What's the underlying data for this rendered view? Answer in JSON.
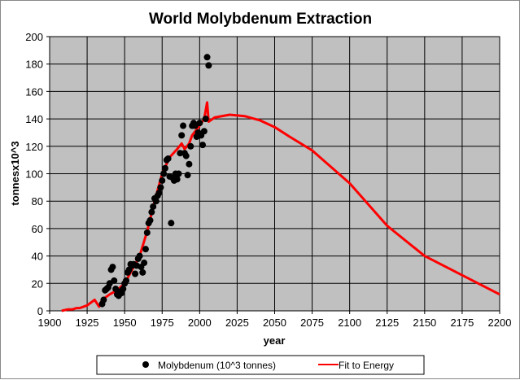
{
  "chart_data": {
    "type": "scatter",
    "title": "World Molybdenum Extraction",
    "xlabel": "year",
    "ylabel": "tonnesx10^3",
    "xlim": [
      1900,
      2200
    ],
    "ylim": [
      0,
      200
    ],
    "xticks": [
      1900,
      1925,
      1950,
      1975,
      2000,
      2025,
      2050,
      2075,
      2100,
      2125,
      2150,
      2175,
      2200
    ],
    "yticks": [
      0,
      20,
      40,
      60,
      80,
      100,
      120,
      140,
      160,
      180,
      200
    ],
    "grid": true,
    "legend_position": "bottom",
    "colors": {
      "plot_bg": "#c0c0c0",
      "points": "#000000",
      "fit": "#ff0000"
    },
    "series": [
      {
        "name": "Molybdenum (10^3 tonnes)",
        "kind": "scatter",
        "points": [
          [
            1935,
            5
          ],
          [
            1936,
            8
          ],
          [
            1937,
            15
          ],
          [
            1938,
            16
          ],
          [
            1939,
            17
          ],
          [
            1940,
            20
          ],
          [
            1941,
            30
          ],
          [
            1942,
            32
          ],
          [
            1943,
            22
          ],
          [
            1944,
            16
          ],
          [
            1945,
            12
          ],
          [
            1946,
            11
          ],
          [
            1947,
            14
          ],
          [
            1948,
            13
          ],
          [
            1949,
            16
          ],
          [
            1950,
            20
          ],
          [
            1951,
            22
          ],
          [
            1952,
            28
          ],
          [
            1953,
            30
          ],
          [
            1954,
            34
          ],
          [
            1955,
            33
          ],
          [
            1956,
            34
          ],
          [
            1957,
            27
          ],
          [
            1958,
            33
          ],
          [
            1959,
            38
          ],
          [
            1960,
            40
          ],
          [
            1961,
            32
          ],
          [
            1962,
            28
          ],
          [
            1963,
            35
          ],
          [
            1964,
            45
          ],
          [
            1965,
            57
          ],
          [
            1966,
            64
          ],
          [
            1967,
            66
          ],
          [
            1968,
            72
          ],
          [
            1969,
            76
          ],
          [
            1970,
            82
          ],
          [
            1971,
            80
          ],
          [
            1972,
            84
          ],
          [
            1973,
            86
          ],
          [
            1974,
            90
          ],
          [
            1975,
            95
          ],
          [
            1976,
            100
          ],
          [
            1977,
            104
          ],
          [
            1978,
            110
          ],
          [
            1979,
            111
          ],
          [
            1980,
            98
          ],
          [
            1981,
            64
          ],
          [
            1982,
            97
          ],
          [
            1983,
            95
          ],
          [
            1984,
            100
          ],
          [
            1985,
            96
          ],
          [
            1986,
            100
          ],
          [
            1987,
            115
          ],
          [
            1988,
            128
          ],
          [
            1989,
            135
          ],
          [
            1990,
            115
          ],
          [
            1991,
            113
          ],
          [
            1992,
            99
          ],
          [
            1993,
            107
          ],
          [
            1994,
            120
          ],
          [
            1995,
            135
          ],
          [
            1996,
            137
          ],
          [
            1997,
            135
          ],
          [
            1998,
            127
          ],
          [
            1999,
            130
          ],
          [
            2000,
            137
          ],
          [
            2001,
            128
          ],
          [
            2002,
            121
          ],
          [
            2003,
            131
          ],
          [
            2004,
            140
          ],
          [
            2005,
            185
          ],
          [
            2006,
            179
          ]
        ]
      },
      {
        "name": "Fit to Energy",
        "kind": "line",
        "points": [
          [
            1908,
            0
          ],
          [
            1912,
            1
          ],
          [
            1915,
            1
          ],
          [
            1918,
            2
          ],
          [
            1920,
            2
          ],
          [
            1925,
            4
          ],
          [
            1930,
            8
          ],
          [
            1933,
            3
          ],
          [
            1935,
            8
          ],
          [
            1940,
            12
          ],
          [
            1945,
            15
          ],
          [
            1950,
            20
          ],
          [
            1955,
            30
          ],
          [
            1960,
            40
          ],
          [
            1965,
            58
          ],
          [
            1970,
            80
          ],
          [
            1975,
            100
          ],
          [
            1980,
            112
          ],
          [
            1985,
            118
          ],
          [
            1988,
            122
          ],
          [
            1990,
            118
          ],
          [
            1993,
            122
          ],
          [
            1995,
            128
          ],
          [
            2000,
            135
          ],
          [
            2003,
            140
          ],
          [
            2005,
            152
          ],
          [
            2006,
            138
          ],
          [
            2010,
            141
          ],
          [
            2020,
            143
          ],
          [
            2030,
            142
          ],
          [
            2040,
            139
          ],
          [
            2050,
            134
          ],
          [
            2060,
            127
          ],
          [
            2075,
            117
          ],
          [
            2100,
            93
          ],
          [
            2125,
            62
          ],
          [
            2150,
            40
          ],
          [
            2175,
            26
          ],
          [
            2200,
            12
          ]
        ]
      }
    ]
  }
}
